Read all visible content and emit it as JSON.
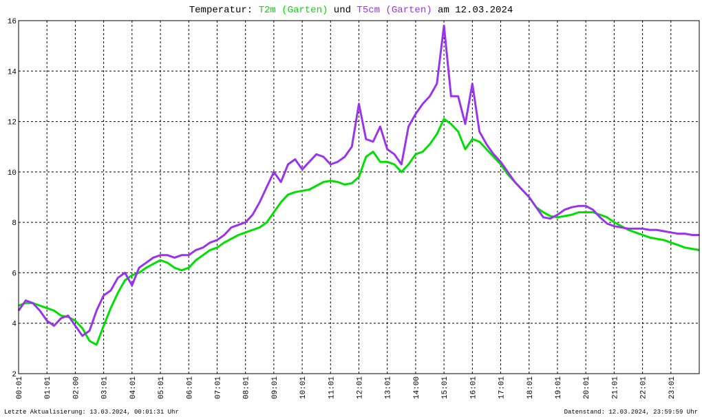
{
  "chart_data": {
    "type": "line",
    "title_parts": [
      "Temperatur:",
      "und",
      "am 12.03.2024"
    ],
    "footer_left": "Letzte Aktualisierung: 13.03.2024, 00:01:31 Uhr",
    "footer_right": "Datenstand: 12.03.2024, 23:59:59 Uhr",
    "x": [
      0,
      0.25,
      0.5,
      0.75,
      1,
      1.25,
      1.5,
      1.75,
      2,
      2.25,
      2.5,
      2.75,
      3,
      3.25,
      3.5,
      3.75,
      4,
      4.25,
      4.5,
      4.75,
      5,
      5.25,
      5.5,
      5.75,
      6,
      6.25,
      6.5,
      6.75,
      7,
      7.25,
      7.5,
      7.75,
      8,
      8.25,
      8.5,
      8.75,
      9,
      9.25,
      9.5,
      9.75,
      10,
      10.25,
      10.5,
      10.75,
      11,
      11.25,
      11.5,
      11.75,
      12,
      12.25,
      12.5,
      12.75,
      13,
      13.25,
      13.5,
      13.75,
      14,
      14.25,
      14.5,
      14.75,
      15,
      15.25,
      15.5,
      15.75,
      16,
      16.25,
      16.5,
      16.75,
      17,
      17.25,
      17.5,
      17.75,
      18,
      18.25,
      18.5,
      18.75,
      19,
      19.25,
      19.5,
      19.75,
      20,
      20.25,
      20.5,
      20.75,
      21,
      21.25,
      21.5,
      21.75,
      22,
      22.25,
      22.5,
      22.75,
      23,
      23.25,
      23.5,
      23.75,
      24
    ],
    "series": [
      {
        "name": "T2m (Garten)",
        "color": "#00e000",
        "values": [
          4.7,
          4.8,
          4.8,
          4.7,
          4.6,
          4.5,
          4.3,
          4.25,
          4.1,
          3.8,
          3.3,
          3.15,
          3.9,
          4.6,
          5.2,
          5.7,
          5.9,
          6.0,
          6.2,
          6.35,
          6.5,
          6.4,
          6.2,
          6.1,
          6.2,
          6.5,
          6.7,
          6.9,
          7.0,
          7.2,
          7.35,
          7.5,
          7.6,
          7.7,
          7.8,
          8.0,
          8.4,
          8.8,
          9.1,
          9.2,
          9.25,
          9.3,
          9.45,
          9.6,
          9.65,
          9.6,
          9.5,
          9.55,
          9.8,
          10.6,
          10.8,
          10.4,
          10.4,
          10.3,
          10.0,
          10.3,
          10.7,
          10.8,
          11.1,
          11.5,
          12.1,
          11.9,
          11.6,
          10.9,
          11.3,
          11.2,
          10.9,
          10.6,
          10.3,
          9.9,
          9.6,
          9.3,
          9.0,
          8.6,
          8.4,
          8.25,
          8.2,
          8.25,
          8.3,
          8.4,
          8.4,
          8.4,
          8.3,
          8.2,
          8.0,
          7.85,
          7.7,
          7.6,
          7.5,
          7.4,
          7.35,
          7.3,
          7.2,
          7.1,
          7.0,
          6.95,
          6.9
        ]
      },
      {
        "name": "T5cm (Garten)",
        "color": "#9933ee",
        "values": [
          4.5,
          4.9,
          4.8,
          4.5,
          4.1,
          3.9,
          4.2,
          4.3,
          3.9,
          3.5,
          3.7,
          4.5,
          5.1,
          5.3,
          5.8,
          6.0,
          5.5,
          6.2,
          6.4,
          6.6,
          6.7,
          6.7,
          6.6,
          6.7,
          6.7,
          6.9,
          7.0,
          7.2,
          7.3,
          7.5,
          7.8,
          7.9,
          8.0,
          8.3,
          8.8,
          9.4,
          10.0,
          9.6,
          10.3,
          10.5,
          10.1,
          10.4,
          10.7,
          10.6,
          10.3,
          10.4,
          10.6,
          11.0,
          12.7,
          11.3,
          11.2,
          11.8,
          10.9,
          10.7,
          10.3,
          11.8,
          12.3,
          12.7,
          13.0,
          13.5,
          15.8,
          13.0,
          13.0,
          11.9,
          13.5,
          11.6,
          11.1,
          10.7,
          10.4,
          10.0,
          9.6,
          9.3,
          9.0,
          8.6,
          8.2,
          8.15,
          8.3,
          8.5,
          8.6,
          8.65,
          8.65,
          8.5,
          8.2,
          7.95,
          7.85,
          7.8,
          7.75,
          7.75,
          7.75,
          7.7,
          7.7,
          7.65,
          7.6,
          7.55,
          7.55,
          7.5,
          7.5
        ]
      }
    ],
    "xlim": [
      0,
      24
    ],
    "xticks": [
      {
        "value": 0,
        "label": "00:01"
      },
      {
        "value": 1,
        "label": "01:01"
      },
      {
        "value": 2,
        "label": "02:00"
      },
      {
        "value": 3,
        "label": "03:01"
      },
      {
        "value": 4,
        "label": "04:01"
      },
      {
        "value": 5,
        "label": "05:01"
      },
      {
        "value": 6,
        "label": "06:01"
      },
      {
        "value": 7,
        "label": "07:01"
      },
      {
        "value": 8,
        "label": "08:01"
      },
      {
        "value": 9,
        "label": "09:01"
      },
      {
        "value": 10,
        "label": "10:01"
      },
      {
        "value": 11,
        "label": "11:01"
      },
      {
        "value": 12,
        "label": "12:01"
      },
      {
        "value": 13,
        "label": "13:01"
      },
      {
        "value": 14,
        "label": "14:00"
      },
      {
        "value": 15,
        "label": "15:01"
      },
      {
        "value": 16,
        "label": "16:01"
      },
      {
        "value": 17,
        "label": "17:01"
      },
      {
        "value": 18,
        "label": "18:01"
      },
      {
        "value": 19,
        "label": "19:01"
      },
      {
        "value": 20,
        "label": "20:01"
      },
      {
        "value": 21,
        "label": "21:01"
      },
      {
        "value": 22,
        "label": "22:01"
      },
      {
        "value": 23,
        "label": "23:01"
      }
    ],
    "ylim": [
      2,
      16
    ],
    "yticks": [
      2,
      4,
      6,
      8,
      10,
      12,
      14,
      16
    ],
    "grid": true
  }
}
